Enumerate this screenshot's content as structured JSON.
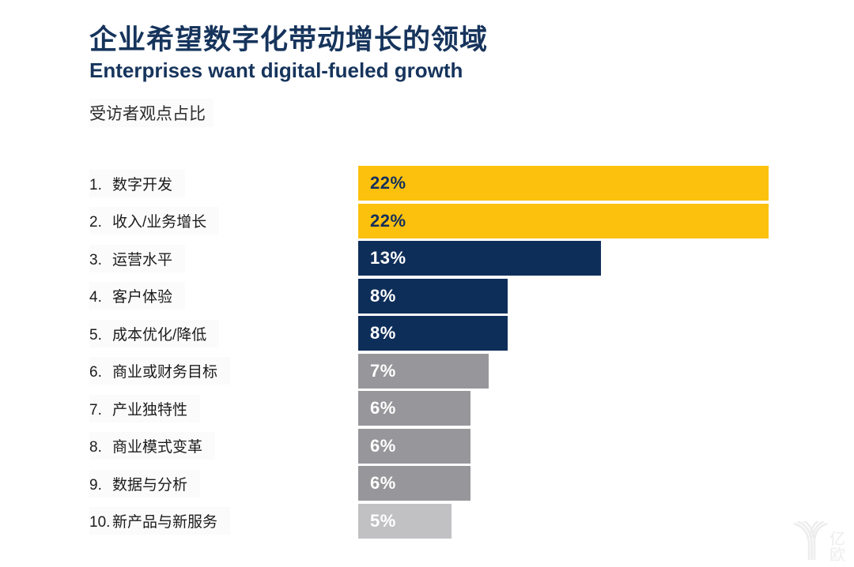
{
  "header": {
    "title_zh": "企业希望数字化带动增长的领域",
    "title_en": "Enterprises want digital-fueled growth",
    "value_note": "受访者观点占比"
  },
  "watermark": {
    "logo_name": "yiou-eo-logo",
    "logo_text": "亿欧",
    "color": "#EDEDED"
  },
  "colors": {
    "title_navy": "#16345C",
    "bar_gold": "#FCC10D",
    "bar_navy": "#0E2E5A",
    "bar_gray": "#97979B",
    "bar_light_gray": "#C1C1C4",
    "label_text": "#1C1C1C",
    "background": "#FFFFFF"
  },
  "chart_data": {
    "type": "bar",
    "orientation": "horizontal",
    "title": "企业希望数字化带动增长的领域",
    "subtitle": "Enterprises want digital-fueled growth",
    "value_note": "受访者观点占比",
    "xlim": [
      0,
      22
    ],
    "grid": false,
    "legend": false,
    "categories": [
      "数字开发",
      "收入/业务增长",
      "运营水平",
      "客户体验",
      "成本优化/降低",
      "商业或财务目标",
      "产业独特性",
      "商业模式变革",
      "数据与分析",
      "新产品与新服务"
    ],
    "values": [
      22,
      22,
      13,
      8,
      8,
      7,
      6,
      6,
      6,
      5
    ],
    "items": [
      {
        "rank": "1.",
        "label": "数字开发",
        "value": 22,
        "display": "22%",
        "bar_color": "#FCC10D",
        "value_color": "#13305C"
      },
      {
        "rank": "2.",
        "label": "收入/业务增长",
        "value": 22,
        "display": "22%",
        "bar_color": "#FCC10D",
        "value_color": "#13305C"
      },
      {
        "rank": "3.",
        "label": "运营水平",
        "value": 13,
        "display": "13%",
        "bar_color": "#0E2E5A",
        "value_color": "#FFFFFF"
      },
      {
        "rank": "4.",
        "label": "客户体验",
        "value": 8,
        "display": "8%",
        "bar_color": "#0E2E5A",
        "value_color": "#FFFFFF"
      },
      {
        "rank": "5.",
        "label": "成本优化/降低",
        "value": 8,
        "display": "8%",
        "bar_color": "#0E2E5A",
        "value_color": "#FFFFFF"
      },
      {
        "rank": "6.",
        "label": "商业或财务目标",
        "value": 7,
        "display": "7%",
        "bar_color": "#97979B",
        "value_color": "#FFFFFF"
      },
      {
        "rank": "7.",
        "label": "产业独特性",
        "value": 6,
        "display": "6%",
        "bar_color": "#97979B",
        "value_color": "#FFFFFF"
      },
      {
        "rank": "8.",
        "label": "商业模式变革",
        "value": 6,
        "display": "6%",
        "bar_color": "#97979B",
        "value_color": "#FFFFFF"
      },
      {
        "rank": "9.",
        "label": "数据与分析",
        "value": 6,
        "display": "6%",
        "bar_color": "#97979B",
        "value_color": "#FFFFFF"
      },
      {
        "rank": "10.",
        "label": "新产品与新服务",
        "value": 5,
        "display": "5%",
        "bar_color": "#C1C1C4",
        "value_color": "#FFFFFF"
      }
    ]
  }
}
